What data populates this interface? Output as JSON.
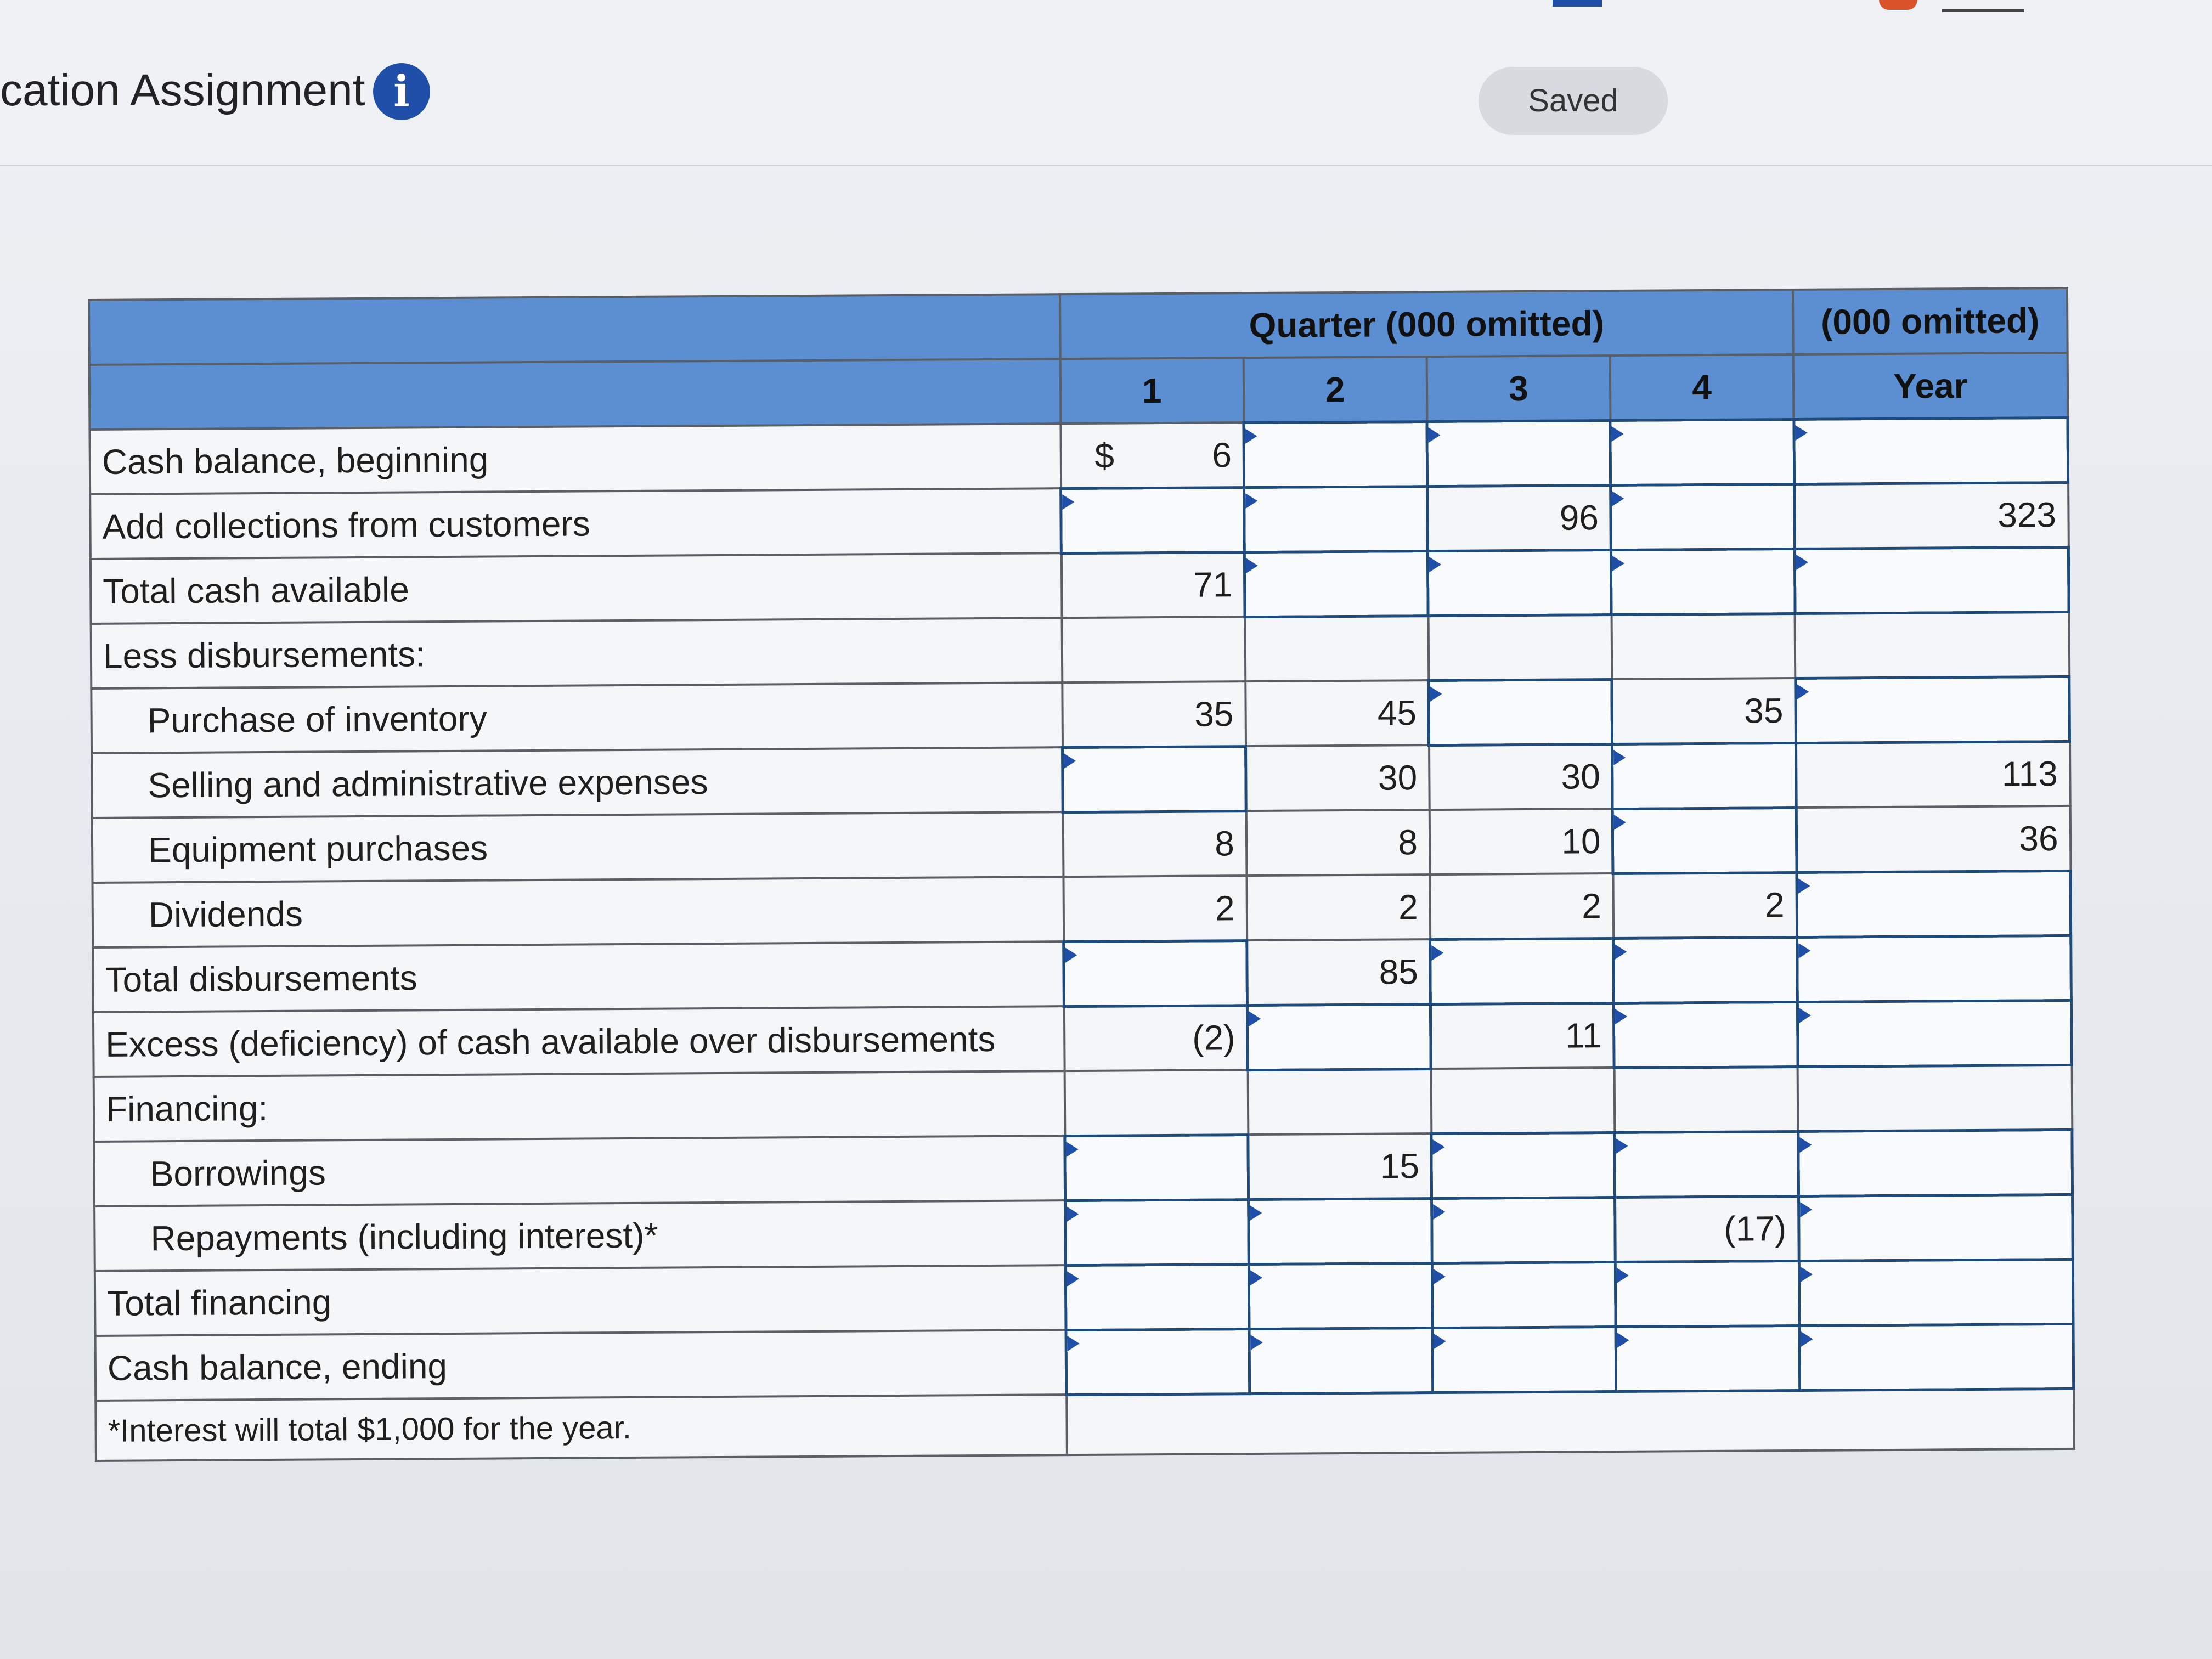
{
  "header": {
    "title": "cation Assignment",
    "saved_label": "Saved",
    "info_icon": "i"
  },
  "table": {
    "header_group_quarter": "Quarter (000 omitted)",
    "header_group_year": "(000 omitted)",
    "columns": [
      "1",
      "2",
      "3",
      "4",
      "Year"
    ],
    "currency_symbol": "$",
    "rows": [
      {
        "label": "Cash balance, beginning",
        "indent": false,
        "cells": [
          "6",
          "",
          "",
          "",
          ""
        ]
      },
      {
        "label": "Add collections from customers",
        "indent": false,
        "cells": [
          "",
          "",
          "96",
          "",
          "323"
        ]
      },
      {
        "label": "Total cash available",
        "indent": false,
        "cells": [
          "71",
          "",
          "",
          "",
          ""
        ]
      },
      {
        "label": "Less disbursements:",
        "indent": false,
        "cells": [
          "",
          "",
          "",
          "",
          ""
        ]
      },
      {
        "label": "Purchase of inventory",
        "indent": true,
        "cells": [
          "35",
          "45",
          "",
          "35",
          ""
        ]
      },
      {
        "label": "Selling and administrative expenses",
        "indent": true,
        "cells": [
          "",
          "30",
          "30",
          "",
          "113"
        ]
      },
      {
        "label": "Equipment purchases",
        "indent": true,
        "cells": [
          "8",
          "8",
          "10",
          "",
          "36"
        ]
      },
      {
        "label": "Dividends",
        "indent": true,
        "cells": [
          "2",
          "2",
          "2",
          "2",
          ""
        ]
      },
      {
        "label": "Total disbursements",
        "indent": false,
        "cells": [
          "",
          "85",
          "",
          "",
          ""
        ]
      },
      {
        "label": "Excess (deficiency) of cash available over disbursements",
        "indent": false,
        "cells": [
          "(2)",
          "",
          "11",
          "",
          ""
        ]
      },
      {
        "label": "Financing:",
        "indent": false,
        "cells": [
          "",
          "",
          "",
          "",
          ""
        ]
      },
      {
        "label": "Borrowings",
        "indent": true,
        "cells": [
          "",
          "15",
          "",
          "",
          ""
        ]
      },
      {
        "label": "Repayments (including interest)*",
        "indent": true,
        "cells": [
          "",
          "",
          "",
          "(17)",
          ""
        ]
      },
      {
        "label": "Total financing",
        "indent": false,
        "cells": [
          "",
          "",
          "",
          "",
          ""
        ]
      },
      {
        "label": "Cash balance, ending",
        "indent": false,
        "cells": [
          "",
          "",
          "",
          "",
          ""
        ]
      }
    ],
    "footnote": "*Interest will total $1,000 for the year."
  }
}
